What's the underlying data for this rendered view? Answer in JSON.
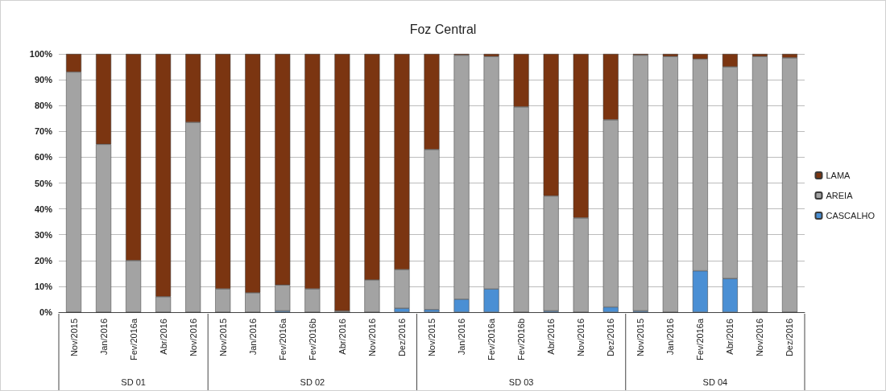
{
  "chart_data": {
    "type": "bar",
    "title": "Foz Central",
    "stacked": true,
    "categories": [
      "Nov/2015",
      "Jan/2016",
      "Fev/2016a",
      "Abr/2016",
      "Nov/2016",
      "Nov/2015",
      "Jan/2016",
      "Fev/2016a",
      "Fev/2016b",
      "Abr/2016",
      "Nov/2016",
      "Dez/2016",
      "Nov/2015",
      "Jan/2016",
      "Fev/2016a",
      "Fev/2016b",
      "Abr/2016",
      "Nov/2016",
      "Dez/2016",
      "Nov/2015",
      "Jan/2016",
      "Fev/2016a",
      "Abr/2016",
      "Nov/2016",
      "Dez/2016"
    ],
    "series": [
      {
        "name": "CASCALHO",
        "color": "#4a8fd4",
        "values": [
          0,
          0,
          0,
          0,
          0,
          0,
          0,
          0.5,
          0,
          0,
          0,
          1.5,
          1,
          5,
          9,
          0,
          0.5,
          0,
          2,
          0.5,
          0,
          16,
          13,
          0,
          0
        ]
      },
      {
        "name": "AREIA",
        "color": "#a3a3a3",
        "values": [
          93,
          65,
          20,
          6,
          73.5,
          9,
          7.5,
          10,
          9,
          0.5,
          12.5,
          15,
          62,
          94.5,
          90,
          79.5,
          44.5,
          36.5,
          72.5,
          99,
          99,
          82,
          82,
          99,
          98.5
        ]
      },
      {
        "name": "LAMA",
        "color": "#7b3511",
        "values": [
          7,
          35,
          80,
          94,
          26.5,
          91,
          92.5,
          89.5,
          91,
          99.5,
          87.5,
          83.5,
          37,
          0.5,
          1,
          20.5,
          55,
          63.5,
          25.5,
          0.5,
          1,
          2,
          5,
          1,
          1.5
        ]
      }
    ],
    "ylim": [
      0,
      100
    ],
    "yticks": [
      {
        "value": 0,
        "label": "0%"
      },
      {
        "value": 10,
        "label": "10%"
      },
      {
        "value": 20,
        "label": "20%"
      },
      {
        "value": 30,
        "label": "30%"
      },
      {
        "value": 40,
        "label": "40%"
      },
      {
        "value": 50,
        "label": "50%"
      },
      {
        "value": 60,
        "label": "60%"
      },
      {
        "value": 70,
        "label": "70%"
      },
      {
        "value": 80,
        "label": "80%"
      },
      {
        "value": 90,
        "label": "90%"
      },
      {
        "value": 100,
        "label": "100%"
      }
    ],
    "grid": "y",
    "legend": "right",
    "annotations": [
      "SD 01",
      "SD 02",
      "SD 03",
      "SD 04"
    ]
  }
}
